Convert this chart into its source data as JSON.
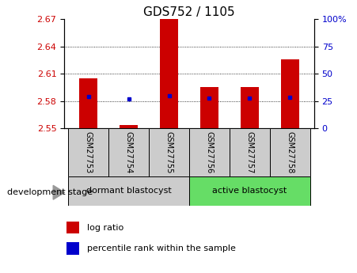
{
  "title": "GDS752 / 1105",
  "samples": [
    "GSM27753",
    "GSM27754",
    "GSM27755",
    "GSM27756",
    "GSM27757",
    "GSM27758"
  ],
  "bar_base": 2.55,
  "bar_tops": [
    2.605,
    2.554,
    2.67,
    2.595,
    2.595,
    2.626
  ],
  "percentile_values": [
    2.585,
    2.582,
    2.586,
    2.583,
    2.583,
    2.584
  ],
  "ylim": [
    2.55,
    2.67
  ],
  "yticks": [
    2.55,
    2.58,
    2.61,
    2.64,
    2.67
  ],
  "y2lim": [
    0,
    100
  ],
  "y2ticks": [
    0,
    25,
    50,
    75,
    100
  ],
  "bar_color": "#cc0000",
  "dot_color": "#0000cc",
  "bar_width": 0.45,
  "group1_label": "dormant blastocyst",
  "group2_label": "active blastocyst",
  "sample_box_color": "#cccccc",
  "group1_color": "#cccccc",
  "group2_color": "#66dd66",
  "stage_label": "development stage",
  "legend_bar_label": "log ratio",
  "legend_dot_label": "percentile rank within the sample",
  "left_tick_color": "#cc0000",
  "right_tick_color": "#0000cc",
  "title_fontsize": 11,
  "tick_fontsize": 8,
  "sample_fontsize": 7,
  "group_fontsize": 8,
  "legend_fontsize": 8,
  "stage_fontsize": 8
}
